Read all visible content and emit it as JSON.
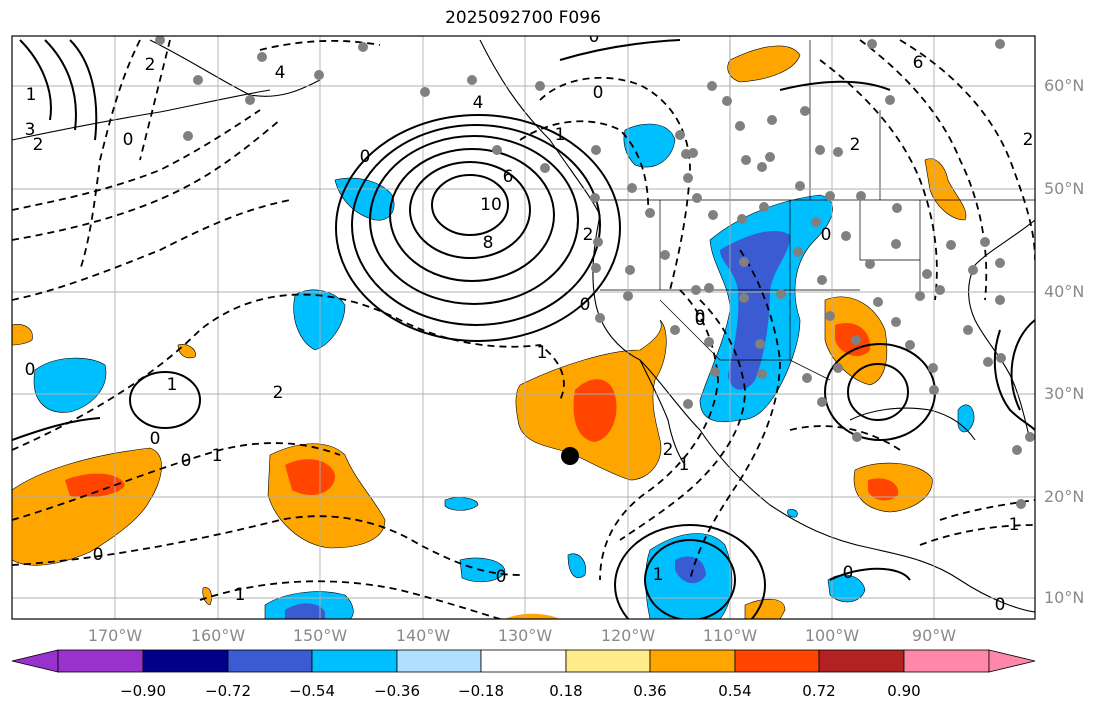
{
  "title": "2025092700 F096",
  "lat_labels": [
    "60°N",
    "50°N",
    "40°N",
    "30°N",
    "20°N",
    "10°N"
  ],
  "lon_labels": [
    "170°W",
    "160°W",
    "150°W",
    "140°W",
    "130°W",
    "120°W",
    "110°W",
    "100°W",
    "90°W"
  ],
  "colorbar": {
    "ticks": [
      "−0.90",
      "−0.72",
      "−0.54",
      "−0.36",
      "−0.18",
      "0.18",
      "0.36",
      "0.54",
      "0.72",
      "0.90"
    ],
    "colors": [
      "#9932cc",
      "#00008b",
      "#3a5bd1",
      "#00bfff",
      "#b0e0ff",
      "#ffffff",
      "#ffeb8a",
      "#ffa500",
      "#ff4500",
      "#b22222",
      "#ff88aa"
    ]
  },
  "contour_labels": [
    "10",
    "8",
    "6",
    "4",
    "2",
    "0",
    "0",
    "0",
    "1",
    "1",
    "0",
    "0",
    "0",
    "2",
    "1",
    "1",
    "0",
    "2",
    "1",
    "0",
    "4",
    "6",
    "0",
    "2",
    "2",
    "0",
    "1",
    "1",
    "0",
    "1",
    "0",
    "1",
    "2",
    "3",
    "2",
    "0",
    "0",
    "0"
  ],
  "colors": {
    "positive_fill": "#ffa500",
    "strong_fill": "#ff4500",
    "negative_fill": "#00bfff",
    "strong_negative_fill": "#3a5bd1",
    "station": "#808080",
    "grid": "#b0b0b0"
  },
  "marker": "storm-position"
}
